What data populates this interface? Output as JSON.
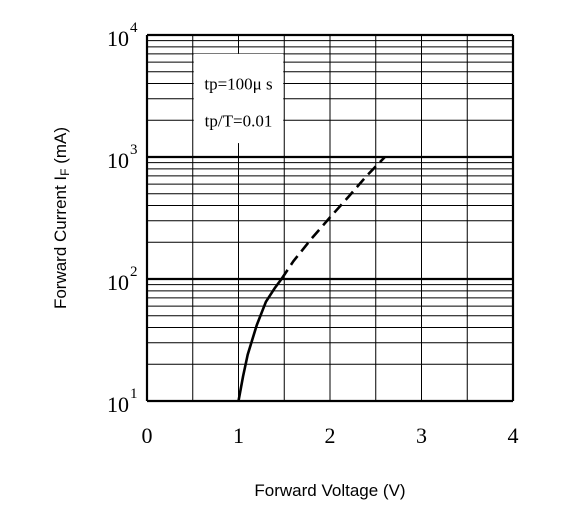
{
  "chart_data": {
    "type": "line",
    "xlabel": "Forward Voltage (V)",
    "ylabel": "Forward Current I",
    "ylabel_sub": "F",
    "ylabel_unit": " (mA)",
    "xlim": [
      0,
      4
    ],
    "ylim": [
      10,
      10000
    ],
    "y_scale": "log",
    "grid": true,
    "x_ticks": [
      {
        "value": 0,
        "label": "0"
      },
      {
        "value": 1,
        "label": "1"
      },
      {
        "value": 2,
        "label": "2"
      },
      {
        "value": 3,
        "label": "3"
      },
      {
        "value": 4,
        "label": "4"
      }
    ],
    "y_ticks": [
      {
        "value": 10,
        "base": "10",
        "exp": "1"
      },
      {
        "value": 100,
        "base": "10",
        "exp": "2"
      },
      {
        "value": 1000,
        "base": "10",
        "exp": "3"
      },
      {
        "value": 10000,
        "base": "10",
        "exp": "4"
      }
    ],
    "annotations": [
      {
        "text": "tp=100μ s"
      },
      {
        "text": "tp/T=0.01"
      }
    ],
    "series": [
      {
        "style": "solid",
        "x": [
          1.0,
          1.05,
          1.1,
          1.2,
          1.3,
          1.4,
          1.47
        ],
        "y": [
          10,
          16,
          24,
          42,
          65,
          85,
          100
        ]
      },
      {
        "style": "dashed",
        "x": [
          1.47,
          1.6,
          1.8,
          2.0,
          2.2,
          2.4,
          2.6
        ],
        "y": [
          100,
          140,
          215,
          320,
          470,
          700,
          1000
        ]
      }
    ]
  }
}
